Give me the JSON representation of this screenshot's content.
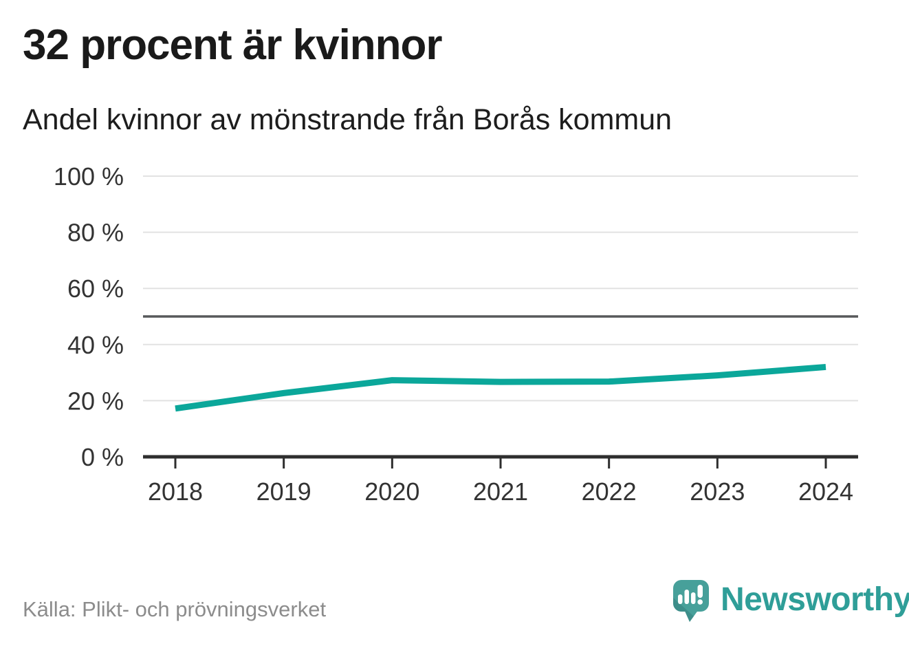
{
  "header": {
    "title": "32 procent är kvinnor",
    "subtitle": "Andel kvinnor av mönstrande från Borås kommun"
  },
  "chart_data": {
    "type": "line",
    "title": "32 procent är kvinnor",
    "subtitle": "Andel kvinnor av mönstrande från Borås kommun",
    "x": [
      2018,
      2019,
      2020,
      2021,
      2022,
      2023,
      2024
    ],
    "series": [
      {
        "name": "Andel kvinnor",
        "values": [
          17.2,
          22.7,
          27.3,
          26.7,
          26.8,
          29.0,
          32.0
        ],
        "color": "#0ba79a"
      }
    ],
    "xlabel": "",
    "ylabel": "",
    "ylim": [
      0,
      100
    ],
    "yticks": [
      0,
      20,
      40,
      60,
      80,
      100
    ],
    "ytick_suffix": " %",
    "reference_line_y": 50,
    "grid": true,
    "legend": false
  },
  "footer": {
    "source": "Källa: Plikt- och prövningsverket",
    "logo_text": "Newsworthy"
  },
  "colors": {
    "line": "#0ba79a",
    "grid": "#e2e2e2",
    "reference_line": "#57585a",
    "axis": "#2e2e2e",
    "title_text": "#1a1a1a",
    "tick_text": "#333333",
    "source_text": "#8c8c8c",
    "logo": "#2f9e98",
    "logo_icon_body": "#47a09a",
    "logo_icon_shadow": "#35807d"
  },
  "icons": {
    "logo_icon": "newsworthy-speech-bubble-bar-chart-icon"
  }
}
